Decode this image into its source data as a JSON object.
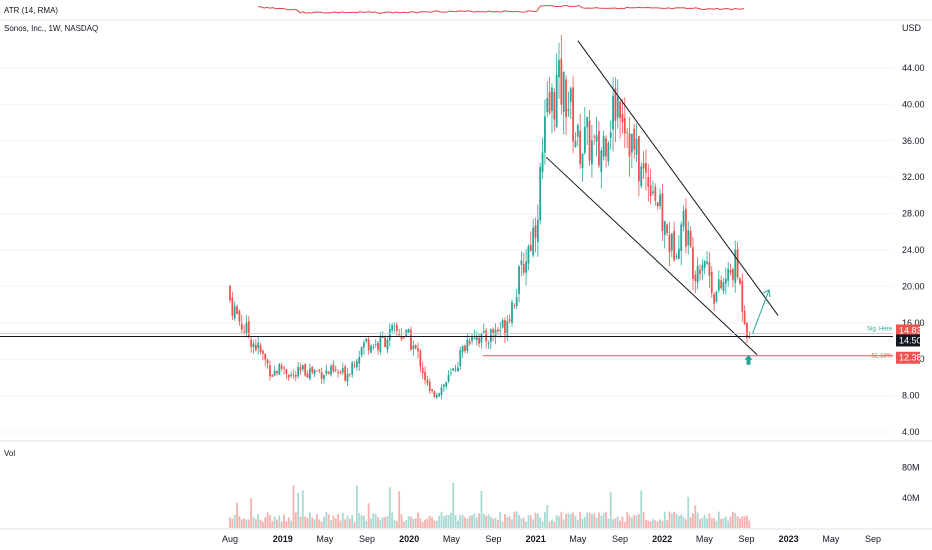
{
  "atr_label": "ATR (14, RMA)",
  "symbol_title": "Sonos, Inc., 1W, NASDAQ",
  "currency": "USD",
  "volume_label": "Vol",
  "colors": {
    "up": "#26a69a",
    "down": "#ef5350",
    "up_vol": "#a8d9d3",
    "down_vol": "#f6b0ae",
    "atr_line": "#e04444",
    "channel": "#131722",
    "support": "#131722",
    "stop_line": "#ef5350",
    "signal_arrow": "#26a69a"
  },
  "chart_data": {
    "type": "candlestick",
    "title": "Sonos, Inc., 1W, NASDAQ",
    "y_unit": "USD",
    "price_axis_ticks": [
      "44.00",
      "40.00",
      "36.00",
      "32.00",
      "28.00",
      "24.00",
      "20.00",
      "16.00",
      "12.00",
      "8.00",
      "4.00"
    ],
    "price_ylim": [
      3.0,
      47.0
    ],
    "x_axis_ticks": [
      "Aug",
      "2019",
      "May",
      "Sep",
      "2020",
      "May",
      "Sep",
      "2021",
      "May",
      "Sep",
      "2022",
      "May",
      "Sep",
      "2023",
      "May",
      "Sep"
    ],
    "x_range": [
      "2018-08",
      "2023-10"
    ],
    "weekly_close_path": [
      {
        "date": "2018-08",
        "price": 18.5
      },
      {
        "date": "2018-09",
        "price": 16.0
      },
      {
        "date": "2018-11",
        "price": 12.5
      },
      {
        "date": "2018-12",
        "price": 10.5
      },
      {
        "date": "2019-01",
        "price": 11.2
      },
      {
        "date": "2019-02",
        "price": 10.0
      },
      {
        "date": "2019-03",
        "price": 10.8
      },
      {
        "date": "2019-05",
        "price": 10.6
      },
      {
        "date": "2019-07",
        "price": 10.3
      },
      {
        "date": "2019-08",
        "price": 12.5
      },
      {
        "date": "2019-09",
        "price": 14.0
      },
      {
        "date": "2019-10",
        "price": 13.5
      },
      {
        "date": "2019-11",
        "price": 14.6
      },
      {
        "date": "2019-12",
        "price": 15.0
      },
      {
        "date": "2020-01",
        "price": 14.2
      },
      {
        "date": "2020-02",
        "price": 12.0
      },
      {
        "date": "2020-03",
        "price": 8.0
      },
      {
        "date": "2020-04",
        "price": 8.8
      },
      {
        "date": "2020-05",
        "price": 10.2
      },
      {
        "date": "2020-06",
        "price": 12.8
      },
      {
        "date": "2020-07",
        "price": 15.2
      },
      {
        "date": "2020-08",
        "price": 14.0
      },
      {
        "date": "2020-09",
        "price": 15.0
      },
      {
        "date": "2020-10",
        "price": 15.6
      },
      {
        "date": "2020-11",
        "price": 19.0
      },
      {
        "date": "2020-12",
        "price": 23.0
      },
      {
        "date": "2021-01",
        "price": 27.0
      },
      {
        "date": "2021-02",
        "price": 38.0
      },
      {
        "date": "2021-03",
        "price": 42.0
      },
      {
        "date": "2021-04",
        "price": 41.0
      },
      {
        "date": "2021-05",
        "price": 35.5
      },
      {
        "date": "2021-06",
        "price": 36.0
      },
      {
        "date": "2021-07",
        "price": 34.0
      },
      {
        "date": "2021-08",
        "price": 38.5
      },
      {
        "date": "2021-09",
        "price": 41.0
      },
      {
        "date": "2021-10",
        "price": 36.0
      },
      {
        "date": "2021-11",
        "price": 32.5
      },
      {
        "date": "2021-12",
        "price": 32.0
      },
      {
        "date": "2022-01",
        "price": 27.0
      },
      {
        "date": "2022-02",
        "price": 24.0
      },
      {
        "date": "2022-03",
        "price": 27.5
      },
      {
        "date": "2022-04",
        "price": 22.0
      },
      {
        "date": "2022-05",
        "price": 23.5
      },
      {
        "date": "2022-06",
        "price": 19.0
      },
      {
        "date": "2022-07",
        "price": 20.5
      },
      {
        "date": "2022-08",
        "price": 22.5
      },
      {
        "date": "2022-09",
        "price": 15.5
      },
      {
        "date": "2022-09-15",
        "price": 14.83
      }
    ],
    "annotations": [
      {
        "label": "Sig. Here",
        "price_label": "14.83",
        "price": 14.83
      },
      {
        "label": "",
        "price_label": "14.50",
        "price": 14.5
      },
      {
        "label": "SL 18%",
        "price_label": "12.38",
        "price": 12.38
      }
    ],
    "channel": {
      "upper": [
        {
          "date": "2021-05",
          "price": 47.0
        },
        {
          "date": "2022-12",
          "price": 16.8
        }
      ],
      "lower": [
        {
          "date": "2021-02",
          "price": 34.2
        },
        {
          "date": "2022-10",
          "price": 12.5
        }
      ]
    },
    "projection_arrow": {
      "from": {
        "date": "2022-09",
        "price": 14.8
      },
      "to": {
        "date": "2022-10",
        "price": 19.6
      }
    },
    "volume": {
      "unit": "shares",
      "axis_ticks": [
        "80M",
        "40M"
      ],
      "ylim": [
        0,
        90000000
      ]
    },
    "atr": {
      "name": "ATR (14, RMA)"
    }
  }
}
